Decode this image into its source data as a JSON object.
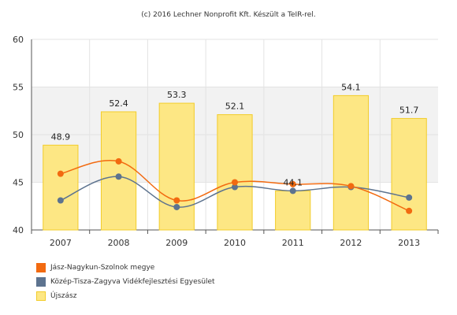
{
  "credit": "(c) 2016 Lechner Nonprofit Kft. Készült a TeIR-rel.",
  "colors": {
    "bar_fill": "#fde784",
    "bar_stroke": "#f2cc2a",
    "series_orange": "#f26a10",
    "series_blue": "#5d738f",
    "band": "#f2f2f2",
    "grid": "#e3e3e3",
    "axis": "#555555"
  },
  "chart_data": {
    "type": "bar",
    "categories": [
      "2007",
      "2008",
      "2009",
      "2010",
      "2011",
      "2012",
      "2013"
    ],
    "ylim": [
      40,
      60
    ],
    "yticks": [
      40,
      45,
      50,
      55,
      60
    ],
    "grid": true,
    "legend_position": "bottom-left",
    "series": [
      {
        "name": "Jász-Nagykun-Szolnok megye",
        "kind": "line",
        "color": "#f26a10",
        "values": [
          45.9,
          47.2,
          43.1,
          45.0,
          44.8,
          44.6,
          42.0
        ]
      },
      {
        "name": "Közép-Tisza-Zagyva Vidékfejlesztési Egyesület",
        "kind": "line",
        "color": "#5d738f",
        "values": [
          43.1,
          45.6,
          42.4,
          44.5,
          44.1,
          44.5,
          43.4
        ]
      },
      {
        "name": "Újszász",
        "kind": "bar",
        "color": "#fde784",
        "values": [
          48.9,
          52.4,
          53.3,
          52.1,
          44.1,
          54.1,
          51.7
        ],
        "labels": [
          "48.9",
          "52.4",
          "53.3",
          "52.1",
          "44.1",
          "54.1",
          "51.7"
        ]
      }
    ]
  }
}
